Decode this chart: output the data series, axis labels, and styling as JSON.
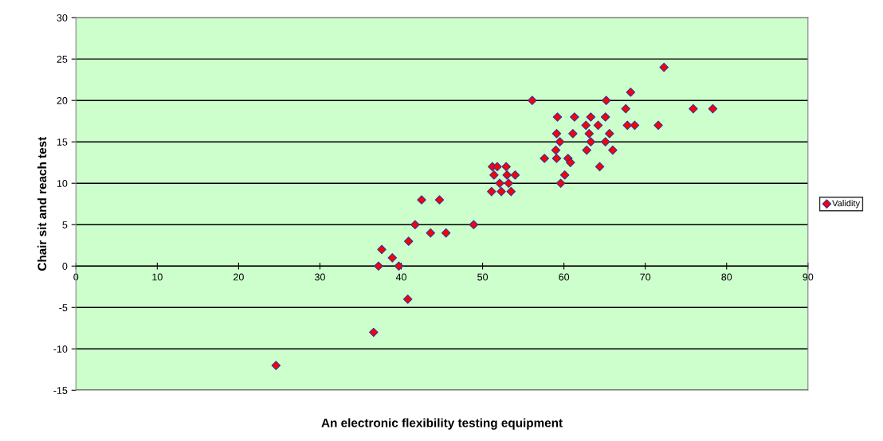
{
  "chart_data": {
    "type": "scatter",
    "xlabel": "An electronic flexibility testing equipment",
    "ylabel": "Chair sit and reach test",
    "series": [
      {
        "name": "Validity",
        "color": "#ff0000",
        "x": [
          24.6,
          36.6,
          40.8,
          37.2,
          39.7,
          38.9,
          37.6,
          40.9,
          41.7,
          43.6,
          45.5,
          48.9,
          42.5,
          44.7,
          51.1,
          52.3,
          53.5,
          52.1,
          53.2,
          51.4,
          53.0,
          54.0,
          51.2,
          51.8,
          52.9,
          56.1,
          57.6,
          59.1,
          60.5,
          60.8,
          60.1,
          59.6,
          59.0,
          59.5,
          59.1,
          59.2,
          61.1,
          61.3,
          62.7,
          63.1,
          63.3,
          63.3,
          62.8,
          64.2,
          64.4,
          65.1,
          65.1,
          65.6,
          66.0,
          65.2,
          67.6,
          67.8,
          68.2,
          72.3,
          75.9,
          78.3,
          68.7,
          71.6
        ],
        "values": [
          -12,
          -8,
          -4,
          0,
          0,
          1,
          2,
          3,
          5,
          4,
          4,
          5,
          8,
          8,
          9,
          9,
          9,
          10,
          10,
          11,
          11,
          11,
          12,
          12,
          12,
          20,
          13,
          13,
          13,
          12.5,
          11,
          10,
          14,
          15,
          16,
          18,
          16,
          18,
          17,
          16,
          18,
          15,
          14,
          17,
          12,
          18,
          15,
          16,
          14,
          20,
          19,
          17,
          21,
          24,
          19,
          19,
          17,
          17
        ]
      }
    ],
    "xlim": [
      0,
      90
    ],
    "xticks": [
      0,
      10,
      20,
      30,
      40,
      50,
      60,
      70,
      80,
      90
    ],
    "ylim": [
      -15,
      30
    ],
    "yticks": [
      -15,
      -10,
      -5,
      0,
      5,
      10,
      15,
      20,
      25,
      30
    ],
    "grid": "y",
    "legend": "right",
    "marker": "diamond"
  }
}
